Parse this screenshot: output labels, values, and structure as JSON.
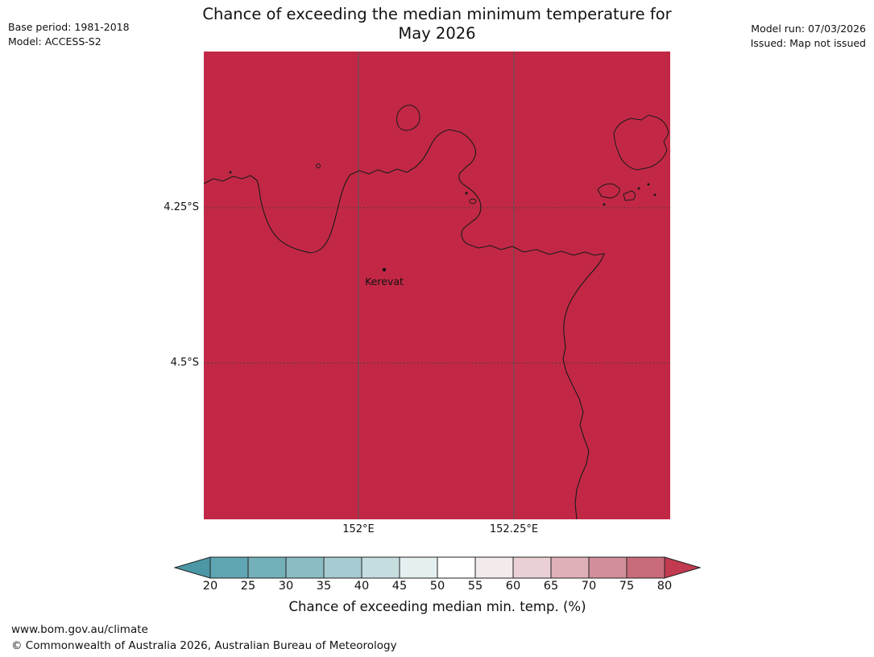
{
  "header": {
    "title_line1": "Chance of exceeding the median minimum temperature for",
    "title_line2": "May 2026",
    "base_period": "Base period: 1981-2018",
    "model": "Model: ACCESS-S2",
    "model_run": "Model run: 07/03/2026",
    "issued": "Issued: Map not issued"
  },
  "map": {
    "fill_color": "#c22845",
    "coastline_color": "#1a1a1a",
    "gridline_color": "#555555",
    "station": {
      "name": "Kerevat"
    },
    "y_axis_labels": [
      "4.25°S",
      "4.5°S"
    ],
    "x_axis_labels": [
      "152°E",
      "152.25°E"
    ]
  },
  "colorbar": {
    "label": "Chance of exceeding median min. temp. (%)",
    "ticks": [
      "20",
      "25",
      "30",
      "35",
      "40",
      "45",
      "50",
      "55",
      "60",
      "65",
      "70",
      "75",
      "80"
    ],
    "left_arrow_color": "#4b97a6",
    "right_arrow_color": "#c13a50",
    "segment_colors": [
      "#60a5b2",
      "#74b0ba",
      "#8bbcc4",
      "#a6cbd1",
      "#c6dde0",
      "#e4eff0",
      "#ffffff",
      "#f3eaeb",
      "#ead0d4",
      "#dfb0b8",
      "#d28e99",
      "#c96b7a"
    ],
    "outline_color": "#222222"
  },
  "footer": {
    "url": "www.bom.gov.au/climate",
    "copyright": "© Commonwealth of Australia 2026, Australian Bureau of Meteorology"
  }
}
